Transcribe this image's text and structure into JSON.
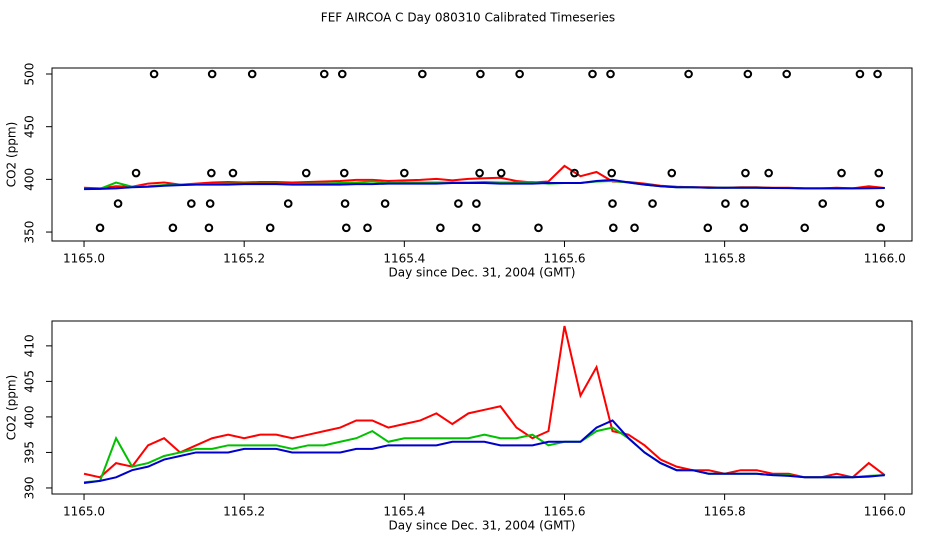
{
  "chart_data": [
    {
      "type": "line",
      "title": "FEF AIRCOA C  Day 080310  Calibrated Timeseries",
      "xlabel": "Day since Dec. 31, 2004 (GMT)",
      "ylabel": "CO2 (ppm)",
      "xlim": [
        1164.96,
        1166.034
      ],
      "ylim": [
        341.5,
        505.7
      ],
      "xticks": [
        {
          "value": 1165,
          "label": "1165.0"
        },
        1165.2,
        1165.4,
        1165.6,
        1165.8,
        {
          "value": 1166,
          "label": "1166.0"
        }
      ],
      "yticks": [
        350,
        400,
        450,
        500
      ],
      "series": [
        {
          "color": "#ff0000",
          "x": [
            1165.0,
            1165.02,
            1165.04,
            1165.06,
            1165.08,
            1165.1,
            1165.12,
            1165.14,
            1165.16,
            1165.18,
            1165.2,
            1165.22,
            1165.24,
            1165.26,
            1165.28,
            1165.3,
            1165.32,
            1165.34,
            1165.36,
            1165.38,
            1165.4,
            1165.42,
            1165.44,
            1165.46,
            1165.48,
            1165.5,
            1165.52,
            1165.54,
            1165.56,
            1165.58,
            1165.6,
            1165.62,
            1165.64,
            1165.66,
            1165.68,
            1165.7,
            1165.72,
            1165.74,
            1165.76,
            1165.78,
            1165.8,
            1165.82,
            1165.84,
            1165.86,
            1165.88,
            1165.9,
            1165.92,
            1165.94,
            1165.96,
            1165.98,
            1166.0
          ],
          "values": [
            392,
            391.5,
            393.5,
            393,
            396,
            397,
            395,
            396,
            397,
            397.5,
            397,
            397.5,
            397.5,
            397,
            397.5,
            398,
            398.5,
            399.5,
            399.5,
            398.5,
            399,
            399.5,
            400.5,
            399,
            400.5,
            401,
            401.5,
            398.5,
            397,
            398,
            412.8,
            403,
            407,
            398,
            397.5,
            396,
            394,
            393,
            392.5,
            392.5,
            392,
            392.5,
            392.5,
            392,
            392,
            391.5,
            391.5,
            392,
            391.5,
            393.5,
            391.8
          ]
        },
        {
          "color": "#00c000",
          "x": [
            1165.0,
            1165.02,
            1165.04,
            1165.06,
            1165.08,
            1165.1,
            1165.12,
            1165.14,
            1165.16,
            1165.18,
            1165.2,
            1165.22,
            1165.24,
            1165.26,
            1165.28,
            1165.3,
            1165.32,
            1165.34,
            1165.36,
            1165.38,
            1165.4,
            1165.42,
            1165.44,
            1165.46,
            1165.48,
            1165.5,
            1165.52,
            1165.54,
            1165.56,
            1165.58,
            1165.6,
            1165.62,
            1165.64,
            1165.66,
            1165.68,
            1165.7,
            1165.72,
            1165.74,
            1165.76,
            1165.78,
            1165.8,
            1165.82,
            1165.84,
            1165.86,
            1165.88,
            1165.9,
            1165.92,
            1165.94,
            1165.96,
            1165.98,
            1166.0
          ],
          "values": [
            390.8,
            391,
            397,
            393,
            393.5,
            394.5,
            395,
            395.5,
            395.5,
            396,
            396,
            396,
            396,
            395.5,
            396,
            396,
            396.5,
            397,
            398,
            396.5,
            397,
            397,
            397,
            397,
            397,
            397.5,
            397,
            397,
            397.5,
            396,
            396.5,
            396.5,
            398,
            398.5,
            397,
            395,
            393.5,
            392.5,
            392.5,
            392,
            392,
            392,
            392,
            391.8,
            391.8,
            391.5,
            391.5,
            391.5,
            391.5,
            391.7,
            391.8
          ]
        },
        {
          "color": "#0000cc",
          "x": [
            1165.0,
            1165.02,
            1165.04,
            1165.06,
            1165.08,
            1165.1,
            1165.12,
            1165.14,
            1165.16,
            1165.18,
            1165.2,
            1165.22,
            1165.24,
            1165.26,
            1165.28,
            1165.3,
            1165.32,
            1165.34,
            1165.36,
            1165.38,
            1165.4,
            1165.42,
            1165.44,
            1165.46,
            1165.48,
            1165.5,
            1165.52,
            1165.54,
            1165.56,
            1165.58,
            1165.6,
            1165.62,
            1165.64,
            1165.66,
            1165.68,
            1165.7,
            1165.72,
            1165.74,
            1165.76,
            1165.78,
            1165.8,
            1165.82,
            1165.84,
            1165.86,
            1165.88,
            1165.9,
            1165.92,
            1165.94,
            1165.96,
            1165.98,
            1166.0
          ],
          "values": [
            390.7,
            391,
            391.5,
            392.5,
            393,
            394,
            394.5,
            395,
            395,
            395,
            395.5,
            395.5,
            395.5,
            395,
            395,
            395,
            395,
            395.5,
            395.5,
            396,
            396,
            396,
            396,
            396.5,
            396.5,
            396.5,
            396,
            396,
            396,
            396.5,
            396.5,
            396.5,
            398.5,
            399.5,
            397,
            395,
            393.5,
            392.5,
            392.5,
            392,
            392,
            392,
            392,
            391.8,
            391.7,
            391.5,
            391.5,
            391.5,
            391.5,
            391.6,
            391.8
          ]
        },
        {
          "color": "#000000",
          "marker": "circle",
          "x": [
            1165.0875,
            1165.16,
            1165.21,
            1165.3,
            1165.3225,
            1165.4225,
            1165.495,
            1165.544,
            1165.635,
            1165.6575,
            1165.755,
            1165.829,
            1165.8775,
            1165.969,
            1165.991
          ],
          "values": [
            500,
            500,
            500,
            500,
            500,
            500,
            500,
            500,
            500,
            500,
            500,
            500,
            500,
            500,
            500
          ]
        },
        {
          "color": "#000000",
          "marker": "circle",
          "x": [
            1165.065,
            1165.159,
            1165.186,
            1165.2775,
            1165.325,
            1165.4,
            1165.494,
            1165.521,
            1165.6125,
            1165.659,
            1165.734,
            1165.826,
            1165.855,
            1165.946,
            1165.9925
          ],
          "values": [
            406,
            406,
            406,
            406,
            406,
            406,
            406,
            406,
            406,
            406,
            406,
            406,
            406,
            406,
            406
          ]
        },
        {
          "color": "#000000",
          "marker": "circle",
          "x": [
            1165.0425,
            1165.134,
            1165.1575,
            1165.255,
            1165.326,
            1165.376,
            1165.4675,
            1165.49,
            1165.66,
            1165.71,
            1165.801,
            1165.825,
            1165.9225,
            1165.994
          ],
          "values": [
            377,
            377,
            377,
            377,
            377,
            377,
            377,
            377,
            377,
            377,
            377,
            377,
            377,
            377
          ]
        },
        {
          "color": "#000000",
          "marker": "circle",
          "x": [
            1165.02,
            1165.111,
            1165.156,
            1165.2325,
            1165.3275,
            1165.354,
            1165.445,
            1165.49,
            1165.5675,
            1165.661,
            1165.6875,
            1165.779,
            1165.824,
            1165.9,
            1165.995
          ],
          "values": [
            354,
            354,
            354,
            354,
            354,
            354,
            354,
            354,
            354,
            354,
            354,
            354,
            354,
            354,
            354
          ]
        }
      ]
    },
    {
      "type": "line",
      "xlabel": "Day since Dec. 31, 2004 (GMT)",
      "ylabel": "CO2 (ppm)",
      "xlim": [
        1164.96,
        1166.034
      ],
      "ylim": [
        389.15,
        413.5
      ],
      "xticks": [
        {
          "value": 1165,
          "label": "1165.0"
        },
        1165.2,
        1165.4,
        1165.6,
        1165.8,
        {
          "value": 1166,
          "label": "1166.0"
        }
      ],
      "yticks": [
        390,
        395,
        400,
        405,
        410
      ],
      "series": [
        {
          "color": "#ff0000",
          "x": [
            1165.0,
            1165.02,
            1165.04,
            1165.06,
            1165.08,
            1165.1,
            1165.12,
            1165.14,
            1165.16,
            1165.18,
            1165.2,
            1165.22,
            1165.24,
            1165.26,
            1165.28,
            1165.3,
            1165.32,
            1165.34,
            1165.36,
            1165.38,
            1165.4,
            1165.42,
            1165.44,
            1165.46,
            1165.48,
            1165.5,
            1165.52,
            1165.54,
            1165.56,
            1165.58,
            1165.6,
            1165.62,
            1165.64,
            1165.66,
            1165.68,
            1165.7,
            1165.72,
            1165.74,
            1165.76,
            1165.78,
            1165.8,
            1165.82,
            1165.84,
            1165.86,
            1165.88,
            1165.9,
            1165.92,
            1165.94,
            1165.96,
            1165.98,
            1166.0
          ],
          "values": [
            392,
            391.5,
            393.5,
            393,
            396,
            397,
            395,
            396,
            397,
            397.5,
            397,
            397.5,
            397.5,
            397,
            397.5,
            398,
            398.5,
            399.5,
            399.5,
            398.5,
            399,
            399.5,
            400.5,
            399,
            400.5,
            401,
            401.5,
            398.5,
            397,
            398,
            412.8,
            403,
            407,
            398,
            397.5,
            396,
            394,
            393,
            392.5,
            392.5,
            392,
            392.5,
            392.5,
            392,
            392,
            391.5,
            391.5,
            392,
            391.5,
            393.5,
            391.8
          ]
        },
        {
          "color": "#00c000",
          "x": [
            1165.0,
            1165.02,
            1165.04,
            1165.06,
            1165.08,
            1165.1,
            1165.12,
            1165.14,
            1165.16,
            1165.18,
            1165.2,
            1165.22,
            1165.24,
            1165.26,
            1165.28,
            1165.3,
            1165.32,
            1165.34,
            1165.36,
            1165.38,
            1165.4,
            1165.42,
            1165.44,
            1165.46,
            1165.48,
            1165.5,
            1165.52,
            1165.54,
            1165.56,
            1165.58,
            1165.6,
            1165.62,
            1165.64,
            1165.66,
            1165.68,
            1165.7,
            1165.72,
            1165.74,
            1165.76,
            1165.78,
            1165.8,
            1165.82,
            1165.84,
            1165.86,
            1165.88,
            1165.9,
            1165.92,
            1165.94,
            1165.96,
            1165.98,
            1166.0
          ],
          "values": [
            390.8,
            391,
            397,
            393,
            393.5,
            394.5,
            395,
            395.5,
            395.5,
            396,
            396,
            396,
            396,
            395.5,
            396,
            396,
            396.5,
            397,
            398,
            396.5,
            397,
            397,
            397,
            397,
            397,
            397.5,
            397,
            397,
            397.5,
            396,
            396.5,
            396.5,
            398,
            398.5,
            397,
            395,
            393.5,
            392.5,
            392.5,
            392,
            392,
            392,
            392,
            391.8,
            391.8,
            391.5,
            391.5,
            391.5,
            391.5,
            391.7,
            391.8
          ]
        },
        {
          "color": "#0000cc",
          "x": [
            1165.0,
            1165.02,
            1165.04,
            1165.06,
            1165.08,
            1165.1,
            1165.12,
            1165.14,
            1165.16,
            1165.18,
            1165.2,
            1165.22,
            1165.24,
            1165.26,
            1165.28,
            1165.3,
            1165.32,
            1165.34,
            1165.36,
            1165.38,
            1165.4,
            1165.42,
            1165.44,
            1165.46,
            1165.48,
            1165.5,
            1165.52,
            1165.54,
            1165.56,
            1165.58,
            1165.6,
            1165.62,
            1165.64,
            1165.66,
            1165.68,
            1165.7,
            1165.72,
            1165.74,
            1165.76,
            1165.78,
            1165.8,
            1165.82,
            1165.84,
            1165.86,
            1165.88,
            1165.9,
            1165.92,
            1165.94,
            1165.96,
            1165.98,
            1166.0
          ],
          "values": [
            390.7,
            391,
            391.5,
            392.5,
            393,
            394,
            394.5,
            395,
            395,
            395,
            395.5,
            395.5,
            395.5,
            395,
            395,
            395,
            395,
            395.5,
            395.5,
            396,
            396,
            396,
            396,
            396.5,
            396.5,
            396.5,
            396,
            396,
            396,
            396.5,
            396.5,
            396.5,
            398.5,
            399.5,
            397,
            395,
            393.5,
            392.5,
            392.5,
            392,
            392,
            392,
            392,
            391.8,
            391.7,
            391.5,
            391.5,
            391.5,
            391.5,
            391.6,
            391.8
          ]
        }
      ]
    }
  ]
}
